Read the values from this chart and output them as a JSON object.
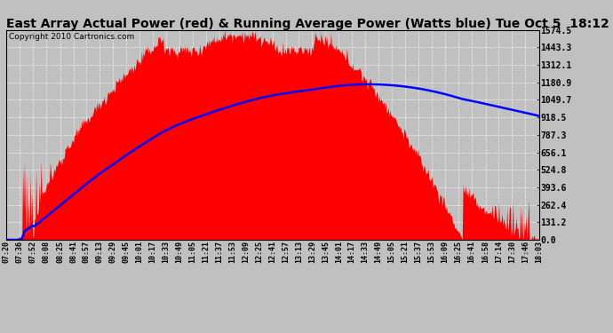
{
  "title": "East Array Actual Power (red) & Running Average Power (Watts blue) Tue Oct 5  18:12",
  "copyright": "Copyright 2010 Cartronics.com",
  "yticks": [
    0.0,
    131.2,
    262.4,
    393.6,
    524.8,
    656.1,
    787.3,
    918.5,
    1049.7,
    1180.9,
    1312.1,
    1443.3,
    1574.5
  ],
  "ymax": 1574.5,
  "bg_color": "#c0c0c0",
  "plot_bg_color": "#c0c0c0",
  "grid_color": "white",
  "fill_color": "red",
  "avg_color": "blue",
  "title_fontsize": 10,
  "copyright_fontsize": 6.5,
  "xtick_labels": [
    "07:20",
    "07:36",
    "07:52",
    "08:08",
    "08:25",
    "08:41",
    "08:57",
    "09:13",
    "09:29",
    "09:45",
    "10:01",
    "10:17",
    "10:33",
    "10:49",
    "11:05",
    "11:21",
    "11:37",
    "11:53",
    "12:09",
    "12:25",
    "12:41",
    "12:57",
    "13:13",
    "13:29",
    "13:45",
    "14:01",
    "14:17",
    "14:33",
    "14:49",
    "15:05",
    "15:21",
    "15:37",
    "15:53",
    "16:09",
    "16:25",
    "16:41",
    "16:58",
    "17:14",
    "17:30",
    "17:46",
    "18:03"
  ]
}
